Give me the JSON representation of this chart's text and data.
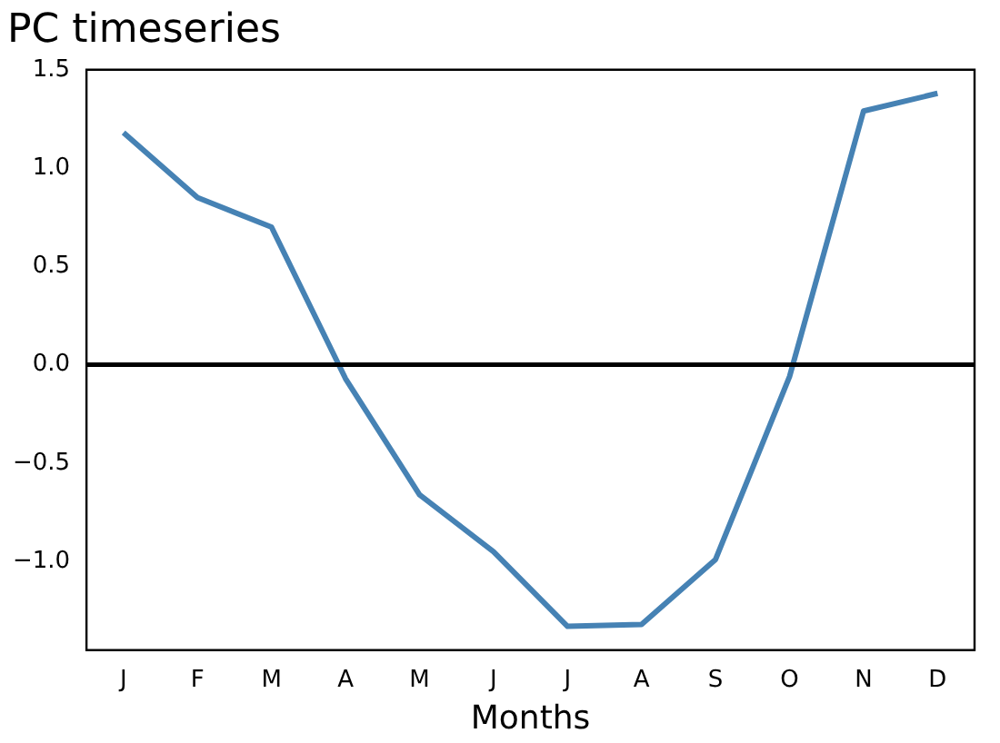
{
  "chart_data": {
    "type": "line",
    "title": "PC timeseries",
    "xlabel": "Months",
    "categories": [
      "J",
      "F",
      "M",
      "A",
      "M",
      "J",
      "J",
      "A",
      "S",
      "O",
      "N",
      "D"
    ],
    "series": [
      {
        "color": "#4682b4",
        "values": [
          1.18,
          0.85,
          0.7,
          -0.07,
          -0.66,
          -0.95,
          -1.33,
          -1.32,
          -0.99,
          -0.06,
          1.29,
          1.38
        ]
      }
    ],
    "ylim": [
      -1.45,
      1.5
    ],
    "yticks": [
      {
        "value": -1,
        "label": "−1.0"
      },
      -0.5,
      {
        "value": 0,
        "label": "0.0"
      },
      0.5,
      {
        "value": 1,
        "label": "1.0"
      },
      1.5
    ],
    "ref_lines": [
      {
        "axis": "y",
        "value": 0,
        "color": "#000000"
      }
    ],
    "grid": false,
    "legend": false,
    "marker": "none",
    "line_style": "solid"
  }
}
